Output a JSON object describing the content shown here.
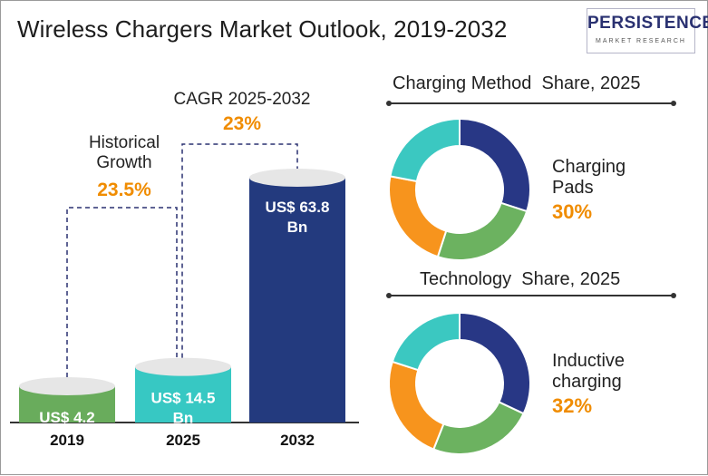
{
  "title": "Wireless Chargers Market Outlook, 2019-2032",
  "logo": {
    "name": "PERSISTENCE",
    "subtitle": "MARKET RESEARCH"
  },
  "chart_data": [
    {
      "type": "bar",
      "categories": [
        "2019",
        "2025",
        "2032"
      ],
      "values": [
        4.2,
        14.5,
        63.8
      ],
      "value_labels": [
        "US$ 4.2 Bn",
        "US$ 14.5 Bn",
        "US$ 63.8 Bn"
      ],
      "colors": [
        "#69ac5c",
        "#37c8c3",
        "#233a7e"
      ],
      "annotations": [
        {
          "label": "Historical Growth",
          "value": "23.5%"
        },
        {
          "label": "CAGR 2025-2032",
          "value": "23%"
        }
      ]
    },
    {
      "type": "pie",
      "title": "Charging Method  Share, 2025",
      "highlight_label": "Charging Pads",
      "highlight_value": "30%",
      "values": [
        30,
        25,
        23,
        22
      ],
      "colors": [
        "#283785",
        "#6cb260",
        "#f7941d",
        "#3bc8c1"
      ]
    },
    {
      "type": "pie",
      "title": "Technology  Share, 2025",
      "highlight_label": "Inductive charging",
      "highlight_value": "32%",
      "values": [
        32,
        24,
        24,
        20
      ],
      "colors": [
        "#283785",
        "#6cb260",
        "#f7941d",
        "#3bc8c1"
      ]
    }
  ]
}
